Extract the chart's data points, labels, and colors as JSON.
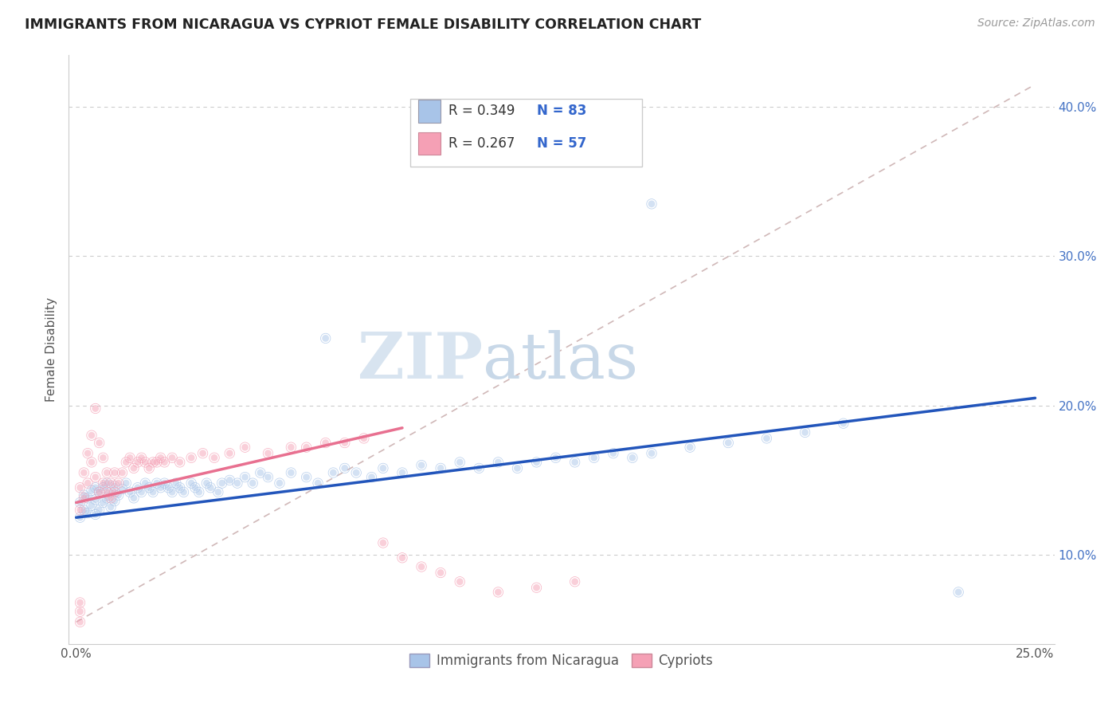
{
  "title": "IMMIGRANTS FROM NICARAGUA VS CYPRIOT FEMALE DISABILITY CORRELATION CHART",
  "source": "Source: ZipAtlas.com",
  "ylabel": "Female Disability",
  "xlim": [
    -0.002,
    0.255
  ],
  "ylim": [
    0.04,
    0.435
  ],
  "x_ticks": [
    0.0,
    0.05,
    0.1,
    0.15,
    0.2,
    0.25
  ],
  "x_tick_labels": [
    "0.0%",
    "",
    "",
    "",
    "",
    "25.0%"
  ],
  "y_ticks": [
    0.1,
    0.2,
    0.3,
    0.4
  ],
  "y_tick_labels": [
    "10.0%",
    "20.0%",
    "30.0%",
    "40.0%"
  ],
  "legend_r1": "R = 0.349",
  "legend_n1": "N = 83",
  "legend_r2": "R = 0.267",
  "legend_n2": "N = 57",
  "series1_color": "#a8c4e8",
  "series2_color": "#f5a0b5",
  "series1_label": "Immigrants from Nicaragua",
  "series2_label": "Cypriots",
  "watermark_zip": "ZIP",
  "watermark_atlas": "atlas",
  "blue_line_color": "#2255bb",
  "pink_line_color": "#e87090",
  "gray_dash_color": "#d0b8b8",
  "blue_line_x": [
    0.0,
    0.25
  ],
  "blue_line_y": [
    0.125,
    0.205
  ],
  "pink_line_x": [
    0.0,
    0.085
  ],
  "pink_line_y": [
    0.135,
    0.185
  ],
  "gray_line_x": [
    0.0,
    0.25
  ],
  "gray_line_y": [
    0.055,
    0.415
  ],
  "series1_x": [
    0.001,
    0.001,
    0.002,
    0.002,
    0.003,
    0.003,
    0.004,
    0.004,
    0.005,
    0.005,
    0.005,
    0.006,
    0.006,
    0.007,
    0.007,
    0.008,
    0.008,
    0.009,
    0.009,
    0.01,
    0.01,
    0.011,
    0.012,
    0.013,
    0.014,
    0.015,
    0.016,
    0.017,
    0.018,
    0.019,
    0.02,
    0.021,
    0.022,
    0.023,
    0.024,
    0.025,
    0.026,
    0.027,
    0.028,
    0.03,
    0.031,
    0.032,
    0.034,
    0.035,
    0.037,
    0.038,
    0.04,
    0.042,
    0.044,
    0.046,
    0.048,
    0.05,
    0.053,
    0.056,
    0.06,
    0.063,
    0.067,
    0.07,
    0.073,
    0.077,
    0.08,
    0.085,
    0.09,
    0.095,
    0.1,
    0.105,
    0.11,
    0.115,
    0.12,
    0.125,
    0.13,
    0.135,
    0.14,
    0.145,
    0.15,
    0.16,
    0.17,
    0.18,
    0.19,
    0.2,
    0.065,
    0.15,
    0.23
  ],
  "series1_y": [
    0.125,
    0.135,
    0.13,
    0.14,
    0.128,
    0.138,
    0.133,
    0.143,
    0.127,
    0.137,
    0.145,
    0.13,
    0.142,
    0.135,
    0.145,
    0.138,
    0.148,
    0.132,
    0.142,
    0.136,
    0.146,
    0.14,
    0.144,
    0.148,
    0.142,
    0.138,
    0.145,
    0.142,
    0.148,
    0.145,
    0.142,
    0.148,
    0.145,
    0.148,
    0.145,
    0.142,
    0.148,
    0.145,
    0.142,
    0.148,
    0.145,
    0.142,
    0.148,
    0.145,
    0.142,
    0.148,
    0.15,
    0.148,
    0.152,
    0.148,
    0.155,
    0.152,
    0.148,
    0.155,
    0.152,
    0.148,
    0.155,
    0.158,
    0.155,
    0.152,
    0.158,
    0.155,
    0.16,
    0.158,
    0.162,
    0.158,
    0.162,
    0.158,
    0.162,
    0.165,
    0.162,
    0.165,
    0.168,
    0.165,
    0.168,
    0.172,
    0.175,
    0.178,
    0.182,
    0.188,
    0.245,
    0.335,
    0.075
  ],
  "series2_x": [
    0.001,
    0.001,
    0.002,
    0.002,
    0.003,
    0.003,
    0.004,
    0.004,
    0.005,
    0.005,
    0.006,
    0.006,
    0.007,
    0.007,
    0.008,
    0.008,
    0.009,
    0.009,
    0.01,
    0.01,
    0.011,
    0.012,
    0.013,
    0.014,
    0.015,
    0.016,
    0.017,
    0.018,
    0.019,
    0.02,
    0.021,
    0.022,
    0.023,
    0.025,
    0.027,
    0.03,
    0.033,
    0.036,
    0.04,
    0.044,
    0.05,
    0.056,
    0.06,
    0.065,
    0.07,
    0.075,
    0.08,
    0.085,
    0.09,
    0.095,
    0.1,
    0.11,
    0.12,
    0.13,
    0.001,
    0.001,
    0.001
  ],
  "series2_y": [
    0.13,
    0.145,
    0.138,
    0.155,
    0.148,
    0.168,
    0.18,
    0.162,
    0.152,
    0.198,
    0.142,
    0.175,
    0.148,
    0.165,
    0.142,
    0.155,
    0.138,
    0.148,
    0.142,
    0.155,
    0.148,
    0.155,
    0.162,
    0.165,
    0.158,
    0.162,
    0.165,
    0.162,
    0.158,
    0.162,
    0.162,
    0.165,
    0.162,
    0.165,
    0.162,
    0.165,
    0.168,
    0.165,
    0.168,
    0.172,
    0.168,
    0.172,
    0.172,
    0.175,
    0.175,
    0.178,
    0.108,
    0.098,
    0.092,
    0.088,
    0.082,
    0.075,
    0.078,
    0.082,
    0.062,
    0.055,
    0.068
  ]
}
